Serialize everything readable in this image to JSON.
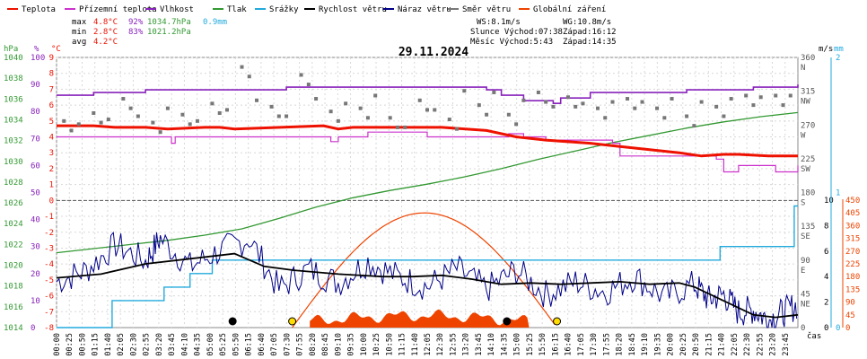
{
  "chart_data": {
    "type": "line",
    "title": "29.11.2024",
    "legend": [
      {
        "key": "teplota",
        "label": "Teplota",
        "color": "#ee1100"
      },
      {
        "key": "pocitova",
        "label": "Přízemní teplota",
        "color": "#cc33cc"
      },
      {
        "key": "vlhkost",
        "label": "Vlhkost",
        "color": "#8822bb"
      },
      {
        "key": "tlak",
        "label": "Tlak",
        "color": "#339933"
      },
      {
        "key": "srazky",
        "label": "Srážky",
        "color": "#22aadd"
      },
      {
        "key": "rychlost",
        "label": "Rychlost větru",
        "color": "#000000"
      },
      {
        "key": "naraz",
        "label": "Náraz větru",
        "color": "#000088"
      },
      {
        "key": "smer",
        "label": "Směr větru",
        "color": "#777777"
      },
      {
        "key": "zareni",
        "label": "Globální záření",
        "color": "#ee4400"
      }
    ],
    "stats": {
      "max": {
        "label": "max",
        "temp": "4.8°C",
        "hum": "92%",
        "press": "1034.7hPa",
        "rain": "0.9mm"
      },
      "min": {
        "label": "min",
        "temp": "2.8°C",
        "hum": "83%",
        "press": "1021.2hPa"
      },
      "avg": {
        "label": "avg",
        "temp": "4.2°C"
      }
    },
    "info": {
      "ws": "WS:8.1m/s",
      "wg": "WG:10.8m/s",
      "slunce": "Slunce Východ:07:38",
      "slunce_zapad": "Západ:16:12",
      "mesic": "Měsíc  Východ:5:43",
      "mesic_zapad": "Západ:14:35"
    },
    "axes": {
      "hpa": {
        "unit": "hPa",
        "ticks": [
          "1040",
          "1038",
          "1036",
          "1034",
          "1032",
          "1030",
          "1028",
          "1026",
          "1024",
          "1022",
          "1020",
          "1018",
          "1016",
          "1014"
        ]
      },
      "pct": {
        "unit": "%",
        "ticks": [
          "100",
          "90",
          "80",
          "70",
          "60",
          "50",
          "40",
          "30",
          "20",
          "10",
          "0"
        ]
      },
      "c": {
        "unit": "°C",
        "ticks": [
          "9",
          "8",
          "7",
          "6",
          "5",
          "4",
          "3",
          "2",
          "1",
          "0",
          "-1",
          "-2",
          "-3",
          "-4",
          "-5",
          "-6",
          "-7",
          "-8"
        ]
      },
      "dir": {
        "ticks": [
          {
            "v": "360",
            "l": "N"
          },
          {
            "v": "315",
            "l": "NW"
          },
          {
            "v": "270",
            "l": "W"
          },
          {
            "v": "225",
            "l": "SW"
          },
          {
            "v": "180",
            "l": "S"
          },
          {
            "v": "135",
            "l": "SE"
          },
          {
            "v": "90",
            "l": "E"
          },
          {
            "v": "45",
            "l": "NE"
          },
          {
            "v": "0",
            "l": ""
          }
        ]
      },
      "ms": {
        "unit": "m/s",
        "ticks": [
          "10",
          "8",
          "6",
          "4",
          "2",
          "0"
        ]
      },
      "mm": {
        "unit": "mm",
        "ticks": [
          "2",
          "1",
          "0"
        ]
      },
      "wm2": {
        "ticks": [
          "450",
          "405",
          "360",
          "315",
          "270",
          "225",
          "180",
          "135",
          "90",
          "45",
          "0"
        ]
      },
      "time_label": "čas",
      "x_ticks": [
        "00:00",
        "00:25",
        "00:50",
        "01:15",
        "01:40",
        "02:05",
        "02:30",
        "02:55",
        "03:20",
        "03:45",
        "04:10",
        "04:35",
        "05:00",
        "05:25",
        "05:50",
        "06:15",
        "06:40",
        "07:05",
        "07:30",
        "07:55",
        "08:20",
        "08:45",
        "09:10",
        "09:35",
        "10:00",
        "10:25",
        "10:50",
        "11:15",
        "11:40",
        "12:05",
        "12:30",
        "12:55",
        "13:20",
        "13:45",
        "14:10",
        "14:35",
        "15:00",
        "15:25",
        "15:50",
        "16:15",
        "16:40",
        "17:05",
        "17:30",
        "17:55",
        "18:20",
        "18:45",
        "19:10",
        "19:35",
        "20:00",
        "20:25",
        "20:50",
        "21:15",
        "21:40",
        "22:05",
        "22:30",
        "22:55",
        "23:20",
        "23:45"
      ]
    },
    "series": {
      "teplota": {
        "unit": "°C",
        "points": [
          [
            0,
            4.7
          ],
          [
            5,
            4.7
          ],
          [
            8,
            4.6
          ],
          [
            12,
            4.6
          ],
          [
            15,
            4.5
          ],
          [
            20,
            4.6
          ],
          [
            22,
            4.6
          ],
          [
            24,
            4.5
          ],
          [
            36,
            4.7
          ],
          [
            38,
            4.5
          ],
          [
            40,
            4.6
          ],
          [
            52,
            4.6
          ],
          [
            58,
            4.4
          ],
          [
            62,
            4.0
          ],
          [
            66,
            3.8
          ],
          [
            72,
            3.6
          ],
          [
            76,
            3.4
          ],
          [
            80,
            3.2
          ],
          [
            84,
            3.0
          ],
          [
            87,
            2.8
          ],
          [
            90,
            2.9
          ],
          [
            92,
            2.9
          ],
          [
            96,
            2.8
          ],
          [
            100,
            2.8
          ]
        ]
      },
      "pocitova": {
        "unit": "°C",
        "points": [
          [
            0,
            4.0
          ],
          [
            15,
            4.0
          ],
          [
            15.5,
            3.6
          ],
          [
            16,
            4.0
          ],
          [
            36,
            4.0
          ],
          [
            37,
            3.7
          ],
          [
            38,
            4.0
          ],
          [
            41,
            4.0
          ],
          [
            42,
            4.3
          ],
          [
            48,
            4.3
          ],
          [
            50,
            4.0
          ],
          [
            60,
            4.0
          ],
          [
            61,
            4.2
          ],
          [
            63,
            4.0
          ],
          [
            66,
            3.8
          ],
          [
            70,
            3.8
          ],
          [
            75,
            3.6
          ],
          [
            76,
            2.8
          ],
          [
            84,
            2.8
          ],
          [
            89,
            2.6
          ],
          [
            90,
            1.8
          ],
          [
            92,
            2.2
          ],
          [
            96,
            2.2
          ],
          [
            97,
            1.8
          ],
          [
            100,
            2.2
          ]
        ]
      },
      "vlhkost": {
        "unit": "%",
        "points": [
          [
            0,
            86
          ],
          [
            4,
            86
          ],
          [
            5,
            87
          ],
          [
            11,
            87
          ],
          [
            12,
            88
          ],
          [
            30,
            88
          ],
          [
            31,
            89
          ],
          [
            57,
            89
          ],
          [
            58,
            88
          ],
          [
            60,
            86
          ],
          [
            63,
            84
          ],
          [
            67,
            83
          ],
          [
            68,
            85
          ],
          [
            71,
            85
          ],
          [
            72,
            87
          ],
          [
            84,
            87
          ],
          [
            85,
            88
          ],
          [
            93,
            88
          ],
          [
            94,
            89
          ],
          [
            100,
            90
          ]
        ]
      },
      "tlak": {
        "unit": "hPa",
        "points": [
          [
            0,
            1021.2
          ],
          [
            5,
            1021.6
          ],
          [
            10,
            1022.0
          ],
          [
            15,
            1022.4
          ],
          [
            20,
            1022.9
          ],
          [
            25,
            1023.5
          ],
          [
            30,
            1024.5
          ],
          [
            35,
            1025.6
          ],
          [
            40,
            1026.5
          ],
          [
            45,
            1027.2
          ],
          [
            50,
            1027.8
          ],
          [
            55,
            1028.5
          ],
          [
            60,
            1029.3
          ],
          [
            65,
            1030.2
          ],
          [
            70,
            1031.0
          ],
          [
            75,
            1031.8
          ],
          [
            80,
            1032.5
          ],
          [
            85,
            1033.2
          ],
          [
            90,
            1033.8
          ],
          [
            95,
            1034.3
          ],
          [
            100,
            1034.7
          ]
        ]
      },
      "srazky": {
        "unit": "mm",
        "points": [
          [
            0,
            0
          ],
          [
            7,
            0
          ],
          [
            7.5,
            0.2
          ],
          [
            14,
            0.2
          ],
          [
            14.5,
            0.3
          ],
          [
            17.5,
            0.3
          ],
          [
            18,
            0.4
          ],
          [
            20,
            0.4
          ],
          [
            21,
            0.5
          ],
          [
            89,
            0.5
          ],
          [
            89.5,
            0.6
          ],
          [
            99,
            0.6
          ],
          [
            99.5,
            0.9
          ],
          [
            100,
            0.9
          ]
        ]
      },
      "zareni": {
        "unit": "W/m2",
        "peak": {
          "hour": 11.7,
          "value": 405
        },
        "sunrise": 7.63,
        "sunset": 16.2
      },
      "smer_samples": [
        [
          1,
          5.0
        ],
        [
          3,
          4.8
        ],
        [
          5,
          5.5
        ],
        [
          7,
          5.1
        ],
        [
          9,
          6.4
        ],
        [
          11,
          5.3
        ],
        [
          13,
          4.9
        ],
        [
          15,
          5.8
        ],
        [
          17,
          5.4
        ],
        [
          19,
          5.0
        ],
        [
          21,
          6.1
        ],
        [
          23,
          5.7
        ],
        [
          25,
          8.4
        ],
        [
          27,
          6.3
        ],
        [
          29,
          5.9
        ],
        [
          31,
          5.3
        ],
        [
          33,
          7.9
        ],
        [
          35,
          6.4
        ],
        [
          37,
          5.6
        ],
        [
          39,
          6.1
        ],
        [
          41,
          5.8
        ],
        [
          43,
          6.6
        ],
        [
          45,
          5.2
        ],
        [
          47,
          4.6
        ],
        [
          49,
          6.3
        ],
        [
          51,
          5.7
        ],
        [
          53,
          5.1
        ],
        [
          55,
          6.9
        ],
        [
          57,
          6.0
        ],
        [
          59,
          6.8
        ],
        [
          61,
          5.4
        ],
        [
          63,
          6.3
        ],
        [
          65,
          6.8
        ],
        [
          67,
          5.9
        ],
        [
          69,
          6.5
        ],
        [
          71,
          6.1
        ],
        [
          73,
          5.8
        ],
        [
          75,
          6.2
        ],
        [
          77,
          6.4
        ],
        [
          79,
          6.2
        ],
        [
          81,
          5.8
        ],
        [
          83,
          6.4
        ],
        [
          85,
          5.3
        ],
        [
          87,
          6.2
        ],
        [
          89,
          5.9
        ],
        [
          91,
          6.4
        ],
        [
          93,
          6.6
        ],
        [
          95,
          6.5
        ],
        [
          97,
          6.6
        ],
        [
          99,
          6.6
        ]
      ],
      "rychlost": {
        "unit": "m/s",
        "points": [
          [
            0,
            3.9
          ],
          [
            6,
            4.2
          ],
          [
            12,
            5.0
          ],
          [
            18,
            5.4
          ],
          [
            24,
            5.8
          ],
          [
            28,
            4.8
          ],
          [
            32,
            4.5
          ],
          [
            38,
            4.2
          ],
          [
            44,
            4.0
          ],
          [
            48,
            4.0
          ],
          [
            52,
            4.1
          ],
          [
            56,
            3.8
          ],
          [
            60,
            3.4
          ],
          [
            64,
            3.5
          ],
          [
            68,
            3.4
          ],
          [
            72,
            3.5
          ],
          [
            76,
            3.6
          ],
          [
            80,
            3.4
          ],
          [
            84,
            3.5
          ],
          [
            86,
            3.2
          ],
          [
            90,
            2.1
          ],
          [
            94,
            1.0
          ],
          [
            97,
            0.8
          ],
          [
            100,
            1.0
          ]
        ]
      },
      "naraz": {
        "unit": "m/s",
        "points": [
          [
            0,
            3.6
          ],
          [
            4,
            4.5
          ],
          [
            8,
            6.5
          ],
          [
            12,
            5.2
          ],
          [
            14,
            7.0
          ],
          [
            18,
            4.8
          ],
          [
            22,
            6.0
          ],
          [
            26,
            7.0
          ],
          [
            30,
            3.0
          ],
          [
            34,
            4.6
          ],
          [
            38,
            3.5
          ],
          [
            42,
            5.2
          ],
          [
            46,
            4.0
          ],
          [
            50,
            3.2
          ],
          [
            54,
            4.6
          ],
          [
            58,
            3.0
          ],
          [
            62,
            4.5
          ],
          [
            66,
            2.6
          ],
          [
            70,
            3.6
          ],
          [
            74,
            2.8
          ],
          [
            78,
            4.0
          ],
          [
            82,
            2.4
          ],
          [
            86,
            3.4
          ],
          [
            88,
            2.2
          ],
          [
            90,
            2.6
          ],
          [
            92,
            1.2
          ],
          [
            94,
            1.4
          ],
          [
            96,
            0.6
          ],
          [
            98,
            1.2
          ],
          [
            100,
            1.8
          ]
        ]
      }
    },
    "markers": [
      {
        "name": "moonrise-marker",
        "hour": 5.7,
        "color": "#000000"
      },
      {
        "name": "sunrise-marker",
        "hour": 7.63,
        "color": "#ffdd00"
      },
      {
        "name": "moonset-marker",
        "hour": 14.58,
        "color": "#000000"
      },
      {
        "name": "sunset-marker",
        "hour": 16.2,
        "color": "#ffdd00"
      }
    ]
  }
}
